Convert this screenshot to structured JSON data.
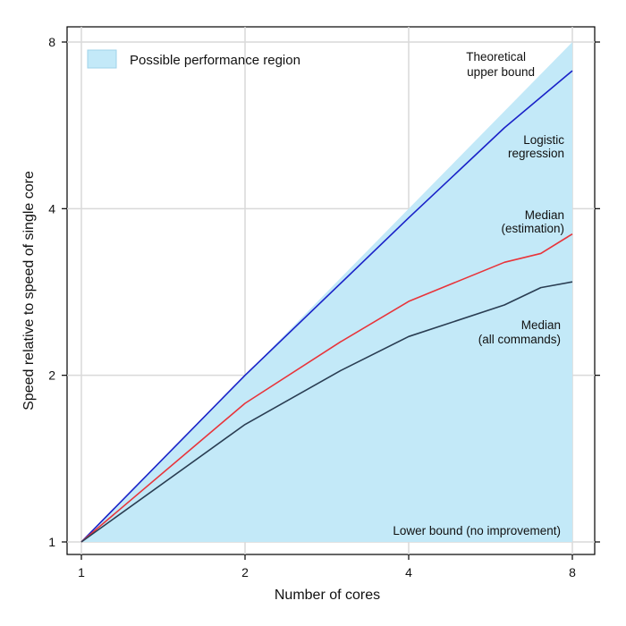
{
  "chart_data": {
    "type": "line",
    "title": "",
    "xlabel": "Number of cores",
    "ylabel": "Speed relative to speed of single core",
    "x_scale": "log2",
    "y_scale": "log2",
    "xlim": [
      1,
      8
    ],
    "ylim": [
      1,
      8
    ],
    "x_ticks": [
      1,
      2,
      4,
      8
    ],
    "y_ticks": [
      1,
      2,
      4,
      8
    ],
    "x_tick_labels": [
      "1",
      "2",
      "4",
      "8"
    ],
    "y_tick_labels": [
      "1",
      "2",
      "4",
      "8"
    ],
    "grid": true,
    "legend": {
      "position": "top-left",
      "label": "Possible performance region"
    },
    "region": {
      "name": "Possible performance region",
      "upper": {
        "x": [
          1,
          8
        ],
        "y": [
          1,
          8
        ]
      },
      "lower": {
        "x": [
          1,
          8
        ],
        "y": [
          1,
          1
        ]
      },
      "color": "#c3e9f8"
    },
    "series": [
      {
        "name": "Logistic regression",
        "color": "#1a22c8",
        "x": [
          1,
          2,
          4,
          6,
          8
        ],
        "y": [
          1,
          2,
          3.85,
          5.6,
          7.1
        ]
      },
      {
        "name": "Median (estimation)",
        "color": "#e8343a",
        "x": [
          1,
          2,
          3,
          4,
          6,
          7,
          8
        ],
        "y": [
          1,
          1.78,
          2.3,
          2.72,
          3.2,
          3.32,
          3.6
        ]
      },
      {
        "name": "Median (all commands)",
        "color": "#2a3d52",
        "x": [
          1,
          2,
          3,
          4,
          6,
          7,
          8
        ],
        "y": [
          1,
          1.63,
          2.04,
          2.35,
          2.68,
          2.88,
          2.95
        ]
      }
    ],
    "annotations": [
      {
        "line1": "Theoretical",
        "line2": "upper bound"
      },
      {
        "line1": "Logistic",
        "line2": "regression"
      },
      {
        "line1": "Median",
        "line2": "(estimation)"
      },
      {
        "line1": "Median",
        "line2": "(all commands)"
      },
      {
        "line1": "Lower bound (no improvement)",
        "line2": ""
      }
    ]
  }
}
